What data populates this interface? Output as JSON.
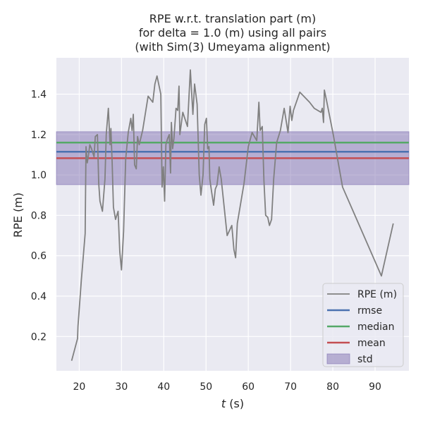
{
  "chart_data": {
    "type": "line",
    "title": [
      "RPE w.r.t. translation part (m)",
      "for delta = 1.0 (m) using all pairs",
      "(with Sim(3) Umeyama alignment)"
    ],
    "xlabel_italic": "t",
    "xlabel_rest": " (s)",
    "ylabel": "RPE (m)",
    "xlim": [
      14.6,
      98.0
    ],
    "ylim": [
      0.03,
      1.58
    ],
    "xticks": [
      20,
      30,
      40,
      50,
      60,
      70,
      80,
      90
    ],
    "yticks": [
      0.2,
      0.4,
      0.6,
      0.8,
      1.0,
      1.2,
      1.4
    ],
    "series": [
      {
        "name": "RPE (m)",
        "color": "#808080",
        "x": [
          18.2,
          19.6,
          19.7,
          20.5,
          21.4,
          21.6,
          21.9,
          22.2,
          22.5,
          22.9,
          23.5,
          23.8,
          24.3,
          24.6,
          24.9,
          25.5,
          26.1,
          26.4,
          26.9,
          27.3,
          27.5,
          27.8,
          28.1,
          28.6,
          28.9,
          29.2,
          29.6,
          30.0,
          30.5,
          31.0,
          31.6,
          32.2,
          32.5,
          32.8,
          33.1,
          33.5,
          33.8,
          34.2,
          35.0,
          36.3,
          37.4,
          37.9,
          38.4,
          39.1,
          39.3,
          39.6,
          39.9,
          40.2,
          40.5,
          40.9,
          41.3,
          41.6,
          41.8,
          42.1,
          42.4,
          42.9,
          43.3,
          43.6,
          43.8,
          44.5,
          45.6,
          46.3,
          46.9,
          47.3,
          47.9,
          48.4,
          48.8,
          49.3,
          49.7,
          50.1,
          50.4,
          50.7,
          50.9,
          51.3,
          51.8,
          52.2,
          52.6,
          53.1,
          53.6,
          55.0,
          56.1,
          56.6,
          57.0,
          57.4,
          59.0,
          60.0,
          60.9,
          62.0,
          62.5,
          62.8,
          63.3,
          63.7,
          64.1,
          64.6,
          65.0,
          65.5,
          66.0,
          66.7,
          67.6,
          68.5,
          69.4,
          69.9,
          70.3,
          70.7,
          72.2,
          74.5,
          75.6,
          77.2,
          77.5,
          77.8,
          78.0,
          78.5,
          80.1,
          82.3,
          91.5,
          94.3
        ],
        "y": [
          0.08,
          0.19,
          0.25,
          0.48,
          0.71,
          1.14,
          1.06,
          1.1,
          1.15,
          1.13,
          1.09,
          1.19,
          1.2,
          0.96,
          0.87,
          0.82,
          0.98,
          1.2,
          1.33,
          1.15,
          1.23,
          1.06,
          0.84,
          0.78,
          0.8,
          0.82,
          0.62,
          0.53,
          0.72,
          1.08,
          1.21,
          1.28,
          1.22,
          1.3,
          1.05,
          1.03,
          1.19,
          1.15,
          1.22,
          1.39,
          1.36,
          1.45,
          1.49,
          1.42,
          1.4,
          0.94,
          1.04,
          0.87,
          1.15,
          1.18,
          1.2,
          1.01,
          1.26,
          1.13,
          1.18,
          1.33,
          1.32,
          1.44,
          1.2,
          1.31,
          1.24,
          1.52,
          1.3,
          1.45,
          1.35,
          1.0,
          0.9,
          1.0,
          1.25,
          1.28,
          1.13,
          1.14,
          0.98,
          0.92,
          0.85,
          0.93,
          0.95,
          1.04,
          0.98,
          0.7,
          0.75,
          0.63,
          0.59,
          0.76,
          0.96,
          1.14,
          1.21,
          1.17,
          1.36,
          1.22,
          1.24,
          0.97,
          0.8,
          0.79,
          0.75,
          0.78,
          0.98,
          1.16,
          1.22,
          1.33,
          1.21,
          1.34,
          1.27,
          1.32,
          1.41,
          1.36,
          1.33,
          1.31,
          1.33,
          1.26,
          1.42,
          1.37,
          1.2,
          0.94,
          0.5,
          0.76
        ]
      }
    ],
    "stats": {
      "rmse": {
        "name": "rmse",
        "value": 1.115,
        "color": "#4c72b0"
      },
      "median": {
        "name": "median",
        "value": 1.16,
        "color": "#55a868"
      },
      "mean": {
        "name": "mean",
        "value": 1.083,
        "color": "#c44e52"
      },
      "std": {
        "name": "std",
        "low": 0.952,
        "high": 1.214,
        "color": "#8172b2"
      }
    },
    "grid": true,
    "legend": "bottom-right",
    "background": "#eaeaf2"
  }
}
